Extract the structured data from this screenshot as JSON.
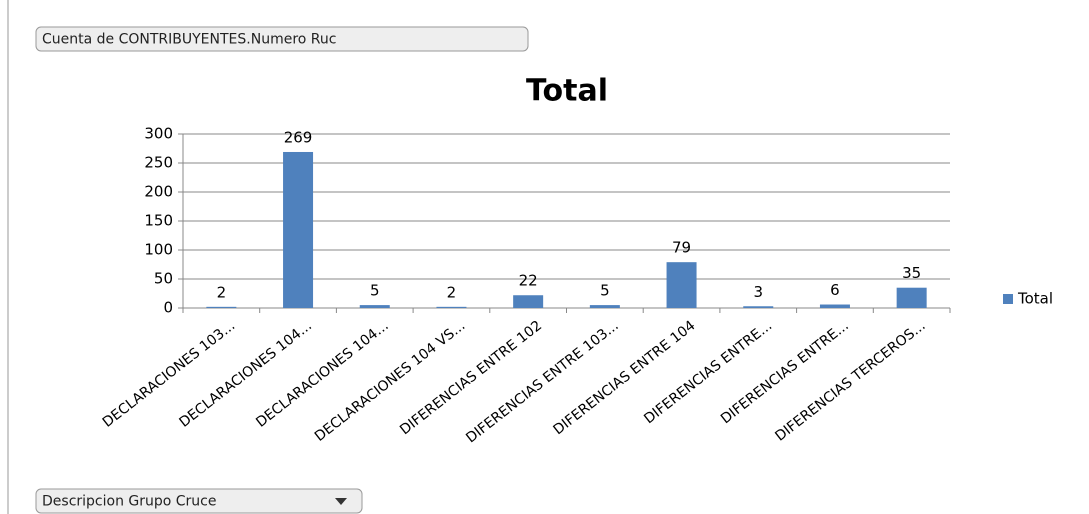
{
  "pivot_buttons": {
    "value_field": "Cuenta de CONTRIBUYENTES.Numero Ruc",
    "axis_field": "Descripcion Grupo Cruce"
  },
  "chart_data": {
    "type": "bar",
    "title": "Total",
    "categories": [
      "DECLARACIONES 103...",
      "DECLARACIONES 104...",
      "DECLARACIONES 104...",
      "DECLARACIONES 104 VS...",
      "DIFERENCIAS ENTRE 102",
      "DIFERENCIAS ENTRE 103...",
      "DIFERENCIAS ENTRE 104",
      "DIFERENCIAS ENTRE...",
      "DIFERENCIAS ENTRE...",
      "DIFERENCIAS TERCEROS..."
    ],
    "series": [
      {
        "name": "Total",
        "color": "#4f81bd",
        "values": [
          2,
          269,
          5,
          2,
          22,
          5,
          79,
          3,
          6,
          35
        ]
      }
    ],
    "ylim": [
      0,
      300
    ],
    "yticks": [
      0,
      50,
      100,
      150,
      200,
      250,
      300
    ],
    "grid": true,
    "legend": "right"
  }
}
